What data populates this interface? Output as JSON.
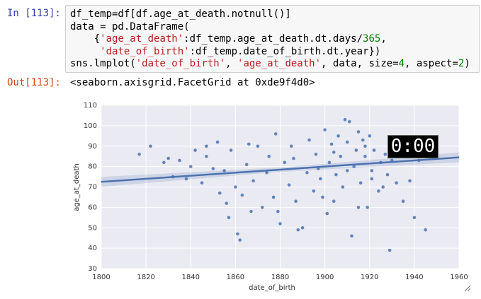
{
  "input_prompt": "In [113]:",
  "code": [
    "df_temp=df[df.age_at_death.notnull()]",
    "data = pd.DataFrame(",
    "    {'age_at_death':df_temp.age_at_death.dt.days/365,",
    "     'date_of_birth':df_temp.date_of_birth.dt.year})",
    "sns.lmplot('date_of_birth', 'age_at_death', data, size=4, aspect=2)"
  ],
  "output_prompt": "Out[113]:",
  "output_text": "<seaborn.axisgrid.FacetGrid at 0xde9f4d0>",
  "timer": "0:00",
  "chart_data": {
    "type": "scatter",
    "xlabel": "date_of_birth",
    "ylabel": "age_at_death",
    "xlim": [
      1800,
      1960
    ],
    "ylim": [
      30,
      110
    ],
    "xticks": [
      1800,
      1820,
      1840,
      1860,
      1880,
      1900,
      1920,
      1940,
      1960
    ],
    "yticks": [
      30,
      40,
      50,
      60,
      70,
      80,
      90,
      100,
      110
    ],
    "grid": true,
    "x": [
      1817,
      1822,
      1828,
      1830,
      1832,
      1835,
      1838,
      1840,
      1842,
      1845,
      1847,
      1850,
      1852,
      1855,
      1856,
      1857,
      1858,
      1860,
      1861,
      1862,
      1863,
      1865,
      1867,
      1868,
      1870,
      1872,
      1874,
      1875,
      1877,
      1878,
      1880,
      1882,
      1884,
      1885,
      1887,
      1888,
      1890,
      1892,
      1893,
      1895,
      1896,
      1898,
      1900,
      1901,
      1902,
      1903,
      1904,
      1905,
      1906,
      1907,
      1908,
      1909,
      1910,
      1911,
      1912,
      1913,
      1914,
      1915,
      1916,
      1917,
      1918,
      1919,
      1920,
      1921,
      1922,
      1924,
      1925,
      1926,
      1928,
      1929,
      1930,
      1932,
      1935,
      1938,
      1940,
      1942,
      1945,
      1847,
      1853,
      1866,
      1879,
      1886,
      1897,
      1899,
      1904,
      1910,
      1915,
      1918,
      1921,
      1927
    ],
    "series": [
      {
        "color": "#4c72b0",
        "values": [
          86,
          90,
          82,
          84,
          75,
          83,
          74,
          80,
          88,
          72,
          85,
          79,
          92,
          78,
          62,
          55,
          88,
          70,
          47,
          44,
          66,
          81,
          58,
          73,
          90,
          60,
          77,
          85,
          65,
          96,
          52,
          82,
          71,
          90,
          63,
          49,
          50,
          77,
          93,
          68,
          86,
          74,
          98,
          57,
          82,
          91,
          63,
          76,
          95,
          85,
          70,
          103,
          92,
          102,
          46,
          80,
          88,
          97,
          72,
          93,
          85,
          60,
          95,
          78,
          88,
          68,
          82,
          70,
          76,
          39,
          83,
          72,
          63,
          73,
          55,
          83,
          49,
          90,
          67,
          91,
          58,
          84,
          79,
          65,
          87,
          78,
          60,
          90,
          74,
          86
        ]
      }
    ],
    "regression": {
      "x": [
        1800,
        1960
      ],
      "values": [
        72.5,
        84.5
      ],
      "color": "#4c72b0"
    }
  }
}
